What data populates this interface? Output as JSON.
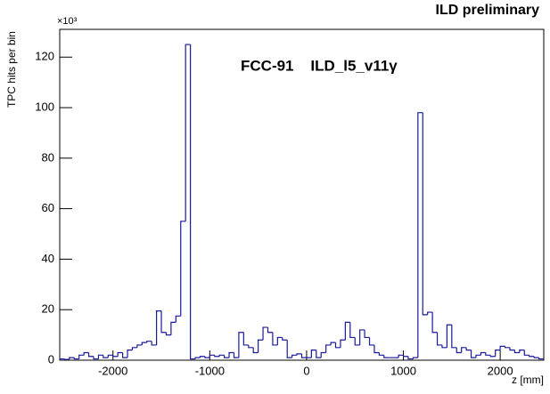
{
  "chart_data": {
    "type": "histogram",
    "title": "ILD preliminary",
    "annotation": "FCC-91    ILD_l5_v11γ",
    "y_multiplier": "×10³",
    "xlabel": "z [mm]",
    "ylabel": "TPC hits per bin",
    "color": "#1a1a9c",
    "bins": [
      -2550,
      -2500,
      -2450,
      -2400,
      -2350,
      -2300,
      -2250,
      -2200,
      -2150,
      -2100,
      -2050,
      -2000,
      -1950,
      -1900,
      -1850,
      -1800,
      -1750,
      -1700,
      -1650,
      -1600,
      -1550,
      -1500,
      -1450,
      -1400,
      -1350,
      -1300,
      -1250,
      -1200,
      -1150,
      -1100,
      -1050,
      -1000,
      -950,
      -900,
      -850,
      -800,
      -750,
      -700,
      -650,
      -600,
      -550,
      -500,
      -450,
      -400,
      -350,
      -300,
      -250,
      -200,
      -150,
      -100,
      -50,
      0,
      50,
      100,
      150,
      200,
      250,
      300,
      350,
      400,
      450,
      500,
      550,
      600,
      650,
      700,
      750,
      800,
      850,
      900,
      950,
      1000,
      1050,
      1100,
      1150,
      1200,
      1250,
      1300,
      1350,
      1400,
      1450,
      1500,
      1550,
      1600,
      1650,
      1700,
      1750,
      1800,
      1850,
      1900,
      1950,
      2000,
      2050,
      2100,
      2150,
      2200,
      2250,
      2300,
      2350,
      2400,
      2450
    ],
    "values": [
      0.5,
      0.3,
      1,
      0.5,
      2,
      3,
      1.5,
      0.5,
      2,
      1,
      2,
      1.5,
      3,
      1,
      4,
      5,
      6,
      7,
      7.5,
      6,
      19.5,
      11,
      10,
      15,
      17.5,
      55,
      125,
      0.5,
      1,
      1.5,
      1,
      2,
      1.5,
      2,
      1,
      3,
      1,
      11,
      6,
      5,
      3,
      8,
      13,
      11,
      6,
      9,
      8,
      1,
      2,
      2.5,
      1,
      1,
      4,
      1,
      3,
      6,
      7,
      5,
      8,
      15,
      9,
      6,
      12,
      9,
      6,
      3,
      2,
      1,
      1,
      1,
      2,
      1.5,
      0.5,
      1,
      98,
      18,
      19,
      11,
      6,
      5,
      14,
      5,
      3,
      5,
      4,
      1,
      2,
      3,
      2,
      1.5,
      4,
      5.5,
      5,
      4,
      3,
      4,
      2,
      1.5,
      1,
      0.5
    ],
    "xlim": [
      -2550,
      2450
    ],
    "ylim": [
      0,
      131
    ],
    "xticks": [
      -2000,
      -1000,
      0,
      1000,
      2000
    ],
    "yticks": [
      0,
      20,
      40,
      60,
      80,
      100,
      120
    ]
  }
}
